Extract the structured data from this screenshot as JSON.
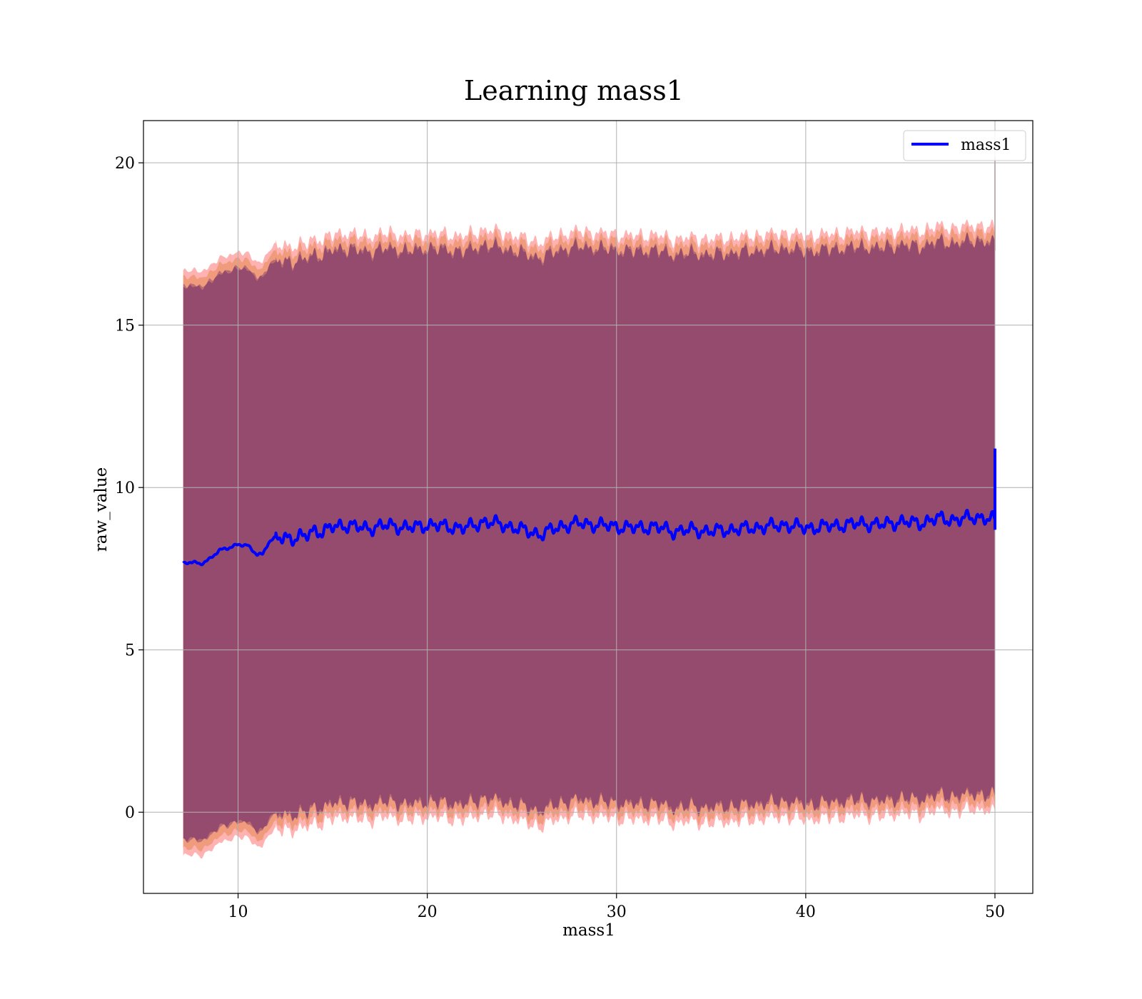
{
  "chart_data": {
    "type": "line",
    "title": "Learning mass1",
    "xlabel": "mass1",
    "ylabel": "raw_value",
    "xlim": [
      5,
      52
    ],
    "ylim": [
      -2.5,
      21.3
    ],
    "xticks": [
      10,
      20,
      30,
      40,
      50
    ],
    "yticks": [
      0,
      5,
      10,
      15,
      20
    ],
    "grid": true,
    "legend": {
      "placement": "upper right",
      "entries": [
        "mass1"
      ]
    },
    "x": [
      7.1,
      7.5,
      8.0,
      8.5,
      9.0,
      9.5,
      10.0,
      10.5,
      11.0,
      11.3,
      11.6,
      12.0,
      12.5,
      13.0,
      13.5,
      14.0,
      14.5,
      15.0,
      15.5,
      16.0,
      17.0,
      18.0,
      19.0,
      20.0,
      21.0,
      22.0,
      23.0,
      24.0,
      25.0,
      26.0,
      27.0,
      28.0,
      29.0,
      30.0,
      31.0,
      32.0,
      33.0,
      34.0,
      35.0,
      36.0,
      37.0,
      38.0,
      39.0,
      40.0,
      41.0,
      42.0,
      43.0,
      44.0,
      45.0,
      46.0,
      47.0,
      48.0,
      49.0,
      50.0
    ],
    "series": [
      {
        "name": "mass1",
        "color": "#0000ff",
        "values": [
          7.65,
          7.7,
          7.65,
          7.8,
          8.05,
          8.15,
          8.25,
          8.2,
          7.95,
          7.95,
          8.3,
          8.45,
          8.5,
          8.4,
          8.5,
          8.7,
          8.6,
          8.8,
          8.85,
          8.8,
          8.75,
          8.85,
          8.75,
          8.85,
          8.8,
          8.75,
          8.95,
          8.85,
          8.7,
          8.55,
          8.8,
          8.9,
          8.85,
          8.8,
          8.75,
          8.8,
          8.65,
          8.7,
          8.65,
          8.7,
          8.75,
          8.8,
          8.85,
          8.75,
          8.8,
          8.85,
          8.9,
          8.85,
          8.95,
          8.9,
          9.05,
          9.0,
          9.1,
          9.0
        ]
      }
    ],
    "bands": [
      {
        "color": "#ff0000",
        "opacity": 0.3,
        "offset_upper": 9.0,
        "offset_lower": 9.0
      },
      {
        "color": "#cc6600",
        "opacity": 0.3,
        "offset_upper": 8.8,
        "offset_lower": 8.8
      },
      {
        "color": "#400060",
        "opacity": 0.3,
        "offset_upper": 8.55,
        "offset_lower": 8.55
      },
      {
        "color": "#400060",
        "opacity": 0.3,
        "offset_upper": 8.5,
        "offset_lower": 8.5
      }
    ],
    "end_spike": {
      "x": 50.0,
      "ymin": 8.7,
      "ymax": 11.2
    }
  }
}
